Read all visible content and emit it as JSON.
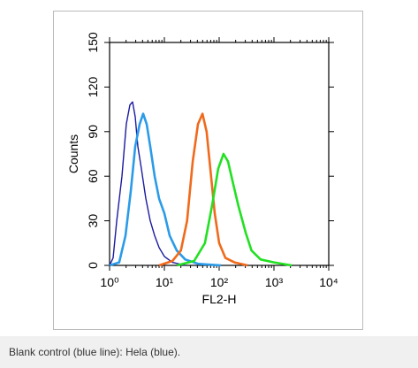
{
  "chart_data": {
    "type": "line",
    "xlabel": "FL2-H",
    "ylabel": "Counts",
    "xscale": "log",
    "xlim": [
      1,
      10000
    ],
    "xticks": [
      {
        "value": 1,
        "label": "10⁰"
      },
      {
        "value": 10,
        "label": "10¹"
      },
      {
        "value": 100,
        "label": "10²"
      },
      {
        "value": 1000,
        "label": "10³"
      },
      {
        "value": 10000,
        "label": "10⁴"
      }
    ],
    "ylim": [
      0,
      150
    ],
    "yticks": [
      0,
      30,
      60,
      90,
      120,
      150
    ],
    "series": [
      {
        "color": "#1a1aa0",
        "x": [
          1,
          1.16,
          1.35,
          1.68,
          2.02,
          2.35,
          2.63,
          2.94,
          3.28,
          3.81,
          4.58,
          5.52,
          6.65,
          8,
          10,
          14,
          24
        ],
        "values": [
          0,
          5,
          30,
          60,
          95,
          108,
          110,
          100,
          80,
          65,
          45,
          30,
          20,
          12,
          6,
          2,
          0
        ]
      },
      {
        "color": "#2b9be8",
        "x": [
          1,
          1.5,
          1.95,
          2.44,
          2.94,
          3.54,
          4.1,
          4.76,
          5.52,
          6.65,
          8,
          10,
          12.5,
          16.8,
          24,
          42,
          108
        ],
        "values": [
          0,
          2,
          20,
          50,
          80,
          95,
          102,
          95,
          80,
          60,
          45,
          35,
          20,
          10,
          4,
          1,
          0
        ]
      },
      {
        "color": "#f06a1c",
        "x": [
          8,
          14,
          20,
          26,
          33,
          41,
          49.5,
          59,
          69,
          83,
          100,
          130,
          190,
          330
        ],
        "values": [
          0,
          3,
          10,
          30,
          70,
          95,
          102,
          90,
          65,
          35,
          15,
          5,
          2,
          0
        ]
      },
      {
        "color": "#22e022",
        "x": [
          17,
          35,
          55,
          74,
          96,
          120,
          145,
          180,
          225,
          305,
          390,
          570,
          1000,
          2100
        ],
        "values": [
          0,
          3,
          15,
          40,
          65,
          75,
          70,
          55,
          40,
          22,
          10,
          4,
          2,
          0
        ]
      }
    ]
  },
  "caption": "Blank control (blue line): Hela (blue)."
}
